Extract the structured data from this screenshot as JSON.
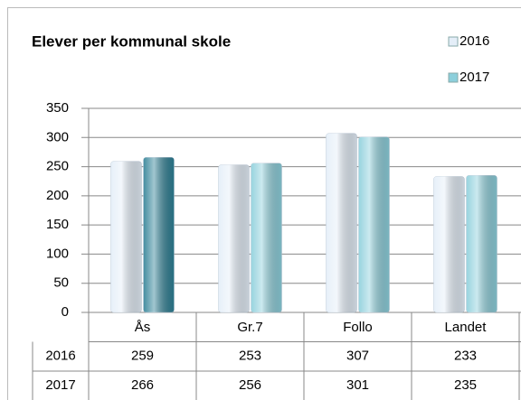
{
  "chart_data": {
    "type": "bar",
    "title": "Elever per kommunal skole",
    "categories": [
      "Ås",
      "Gr.7",
      "Follo",
      "Landet"
    ],
    "series": [
      {
        "name": "2016",
        "color": "#e4eef8",
        "values": [
          259,
          253,
          307,
          233
        ]
      },
      {
        "name": "2017",
        "color": "#8ccfdb",
        "point_colors": [
          "#2f8196",
          "#8ccfdb",
          "#8ccfdb",
          "#8ccfdb"
        ],
        "values": [
          266,
          256,
          301,
          235
        ]
      }
    ],
    "ylim": [
      0,
      350
    ],
    "yticks": [
      0,
      50,
      100,
      150,
      200,
      250,
      300,
      350
    ],
    "grid": true,
    "legend": "top-right",
    "data_table": true
  }
}
